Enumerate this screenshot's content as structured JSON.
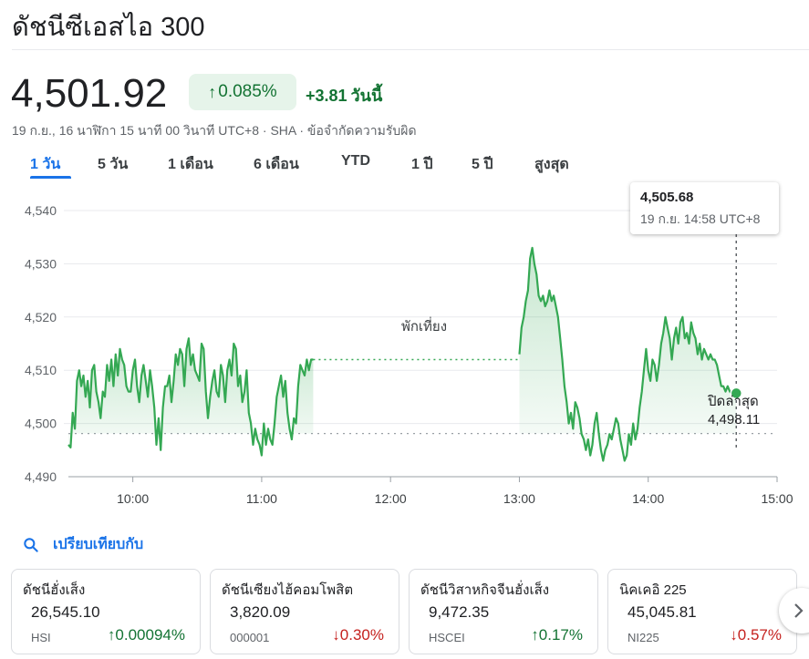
{
  "header": {
    "title": "ดัชนีซีเอสไอ 300",
    "price": "4,501.92",
    "change_pct": "0.085%",
    "change_abs": "+3.81",
    "change_period": "วันนี้",
    "meta": "19 ก.ย., 16 นาฬิกา 15 นาที 00 วินาที UTC+8 · SHA · ข้อจำกัดความรับผิด"
  },
  "tabs": [
    "1 วัน",
    "5 วัน",
    "1 เดือน",
    "6 เดือน",
    "YTD",
    "1 ปี",
    "5 ปี",
    "สูงสุด"
  ],
  "active_tab": 0,
  "colors": {
    "up": "#137333",
    "down": "#c5221f",
    "line": "#34a853",
    "accent": "#1a73e8"
  },
  "chart_data": {
    "type": "line",
    "ylim": [
      4490,
      4540
    ],
    "yticks": [
      "4,540",
      "4,530",
      "4,520",
      "4,510",
      "4,500",
      "4,490"
    ],
    "ytick_values": [
      4540,
      4530,
      4520,
      4510,
      4500,
      4490
    ],
    "xticks": [
      "10:00",
      "11:00",
      "12:00",
      "13:00",
      "14:00",
      "15:00"
    ],
    "xtick_minutes": [
      600,
      660,
      720,
      780,
      840,
      900
    ],
    "xlim_minutes": [
      570,
      900
    ],
    "previous_close": 4498.11,
    "previous_close_label": "ปิดล่าสุด",
    "previous_close_value": "4,498.11",
    "lunch_break_label": "พักเที่ยง",
    "tooltip": {
      "value": "4,505.68",
      "time": "19 ก.ย. 14:58 UTC+8"
    },
    "session1": [
      [
        570,
        4496
      ],
      [
        571,
        4495.5
      ],
      [
        572,
        4502
      ],
      [
        573,
        4499
      ],
      [
        574,
        4508
      ],
      [
        575,
        4510
      ],
      [
        576,
        4507
      ],
      [
        577,
        4509
      ],
      [
        578,
        4505
      ],
      [
        579,
        4508
      ],
      [
        580,
        4503
      ],
      [
        581,
        4510
      ],
      [
        582,
        4511
      ],
      [
        583,
        4506
      ],
      [
        584,
        4504
      ],
      [
        585,
        4501
      ],
      [
        586,
        4506
      ],
      [
        587,
        4505
      ],
      [
        588,
        4511
      ],
      [
        589,
        4508
      ],
      [
        590,
        4512
      ],
      [
        591,
        4507
      ],
      [
        592,
        4513
      ],
      [
        593,
        4509
      ],
      [
        594,
        4514
      ],
      [
        595,
        4512
      ],
      [
        596,
        4511
      ],
      [
        597,
        4507
      ],
      [
        598,
        4506
      ],
      [
        599,
        4506
      ],
      [
        600,
        4510
      ],
      [
        601,
        4512
      ],
      [
        602,
        4507
      ],
      [
        603,
        4504
      ],
      [
        604,
        4509
      ],
      [
        605,
        4511
      ],
      [
        606,
        4508
      ],
      [
        607,
        4505
      ],
      [
        608,
        4510
      ],
      [
        609,
        4507
      ],
      [
        610,
        4503
      ],
      [
        611,
        4496
      ],
      [
        612,
        4501
      ],
      [
        613,
        4495
      ],
      [
        614,
        4503
      ],
      [
        615,
        4507
      ],
      [
        616,
        4507
      ],
      [
        617,
        4509
      ],
      [
        618,
        4504
      ],
      [
        619,
        4508
      ],
      [
        620,
        4513
      ],
      [
        621,
        4511
      ],
      [
        622,
        4514
      ],
      [
        623,
        4513
      ],
      [
        624,
        4507
      ],
      [
        625,
        4514
      ],
      [
        626,
        4516
      ],
      [
        627,
        4511
      ],
      [
        628,
        4513
      ],
      [
        629,
        4510
      ],
      [
        630,
        4509
      ],
      [
        631,
        4508
      ],
      [
        632,
        4515
      ],
      [
        633,
        4514
      ],
      [
        634,
        4506
      ],
      [
        635,
        4501
      ],
      [
        636,
        4505
      ],
      [
        637,
        4508
      ],
      [
        638,
        4510
      ],
      [
        639,
        4506
      ],
      [
        640,
        4505
      ],
      [
        641,
        4511
      ],
      [
        642,
        4509
      ],
      [
        643,
        4504
      ],
      [
        644,
        4510
      ],
      [
        645,
        4512
      ],
      [
        646,
        4509
      ],
      [
        647,
        4515
      ],
      [
        648,
        4514
      ],
      [
        649,
        4507
      ],
      [
        650,
        4509
      ],
      [
        651,
        4504
      ],
      [
        652,
        4506
      ],
      [
        653,
        4510
      ],
      [
        654,
        4502
      ],
      [
        655,
        4500
      ],
      [
        656,
        4496
      ],
      [
        657,
        4499
      ],
      [
        658,
        4497
      ],
      [
        659,
        4496
      ],
      [
        660,
        4494
      ],
      [
        661,
        4500
      ],
      [
        662,
        4496
      ],
      [
        663,
        4499
      ],
      [
        664,
        4497
      ],
      [
        665,
        4496
      ],
      [
        666,
        4500
      ],
      [
        667,
        4505
      ],
      [
        668,
        4507
      ],
      [
        669,
        4509
      ],
      [
        670,
        4505
      ],
      [
        671,
        4508
      ],
      [
        672,
        4502
      ],
      [
        673,
        4499
      ],
      [
        674,
        4497
      ],
      [
        675,
        4501
      ],
      [
        676,
        4500
      ],
      [
        677,
        4507
      ],
      [
        678,
        4511
      ],
      [
        679,
        4510
      ],
      [
        680,
        4509
      ],
      [
        681,
        4512
      ],
      [
        682,
        4510
      ],
      [
        683,
        4512
      ],
      [
        684,
        4512
      ]
    ],
    "session2": [
      [
        780,
        4513
      ],
      [
        781,
        4518
      ],
      [
        782,
        4520
      ],
      [
        783,
        4523
      ],
      [
        784,
        4525
      ],
      [
        785,
        4531
      ],
      [
        786,
        4533
      ],
      [
        787,
        4530
      ],
      [
        788,
        4528
      ],
      [
        789,
        4524
      ],
      [
        790,
        4523
      ],
      [
        791,
        4524
      ],
      [
        792,
        4522
      ],
      [
        793,
        4523
      ],
      [
        794,
        4525
      ],
      [
        795,
        4523
      ],
      [
        796,
        4524
      ],
      [
        797,
        4522
      ],
      [
        798,
        4520
      ],
      [
        799,
        4516
      ],
      [
        800,
        4512
      ],
      [
        801,
        4507
      ],
      [
        802,
        4504
      ],
      [
        803,
        4500
      ],
      [
        804,
        4502
      ],
      [
        805,
        4499
      ],
      [
        806,
        4504
      ],
      [
        807,
        4503
      ],
      [
        808,
        4501
      ],
      [
        809,
        4498
      ],
      [
        810,
        4497
      ],
      [
        811,
        4495
      ],
      [
        812,
        4497
      ],
      [
        813,
        4494
      ],
      [
        814,
        4496
      ],
      [
        815,
        4500
      ],
      [
        816,
        4502
      ],
      [
        817,
        4498
      ],
      [
        818,
        4495
      ],
      [
        819,
        4493
      ],
      [
        820,
        4495
      ],
      [
        821,
        4496
      ],
      [
        822,
        4498
      ],
      [
        823,
        4497
      ],
      [
        824,
        4499
      ],
      [
        825,
        4501
      ],
      [
        826,
        4500
      ],
      [
        827,
        4497
      ],
      [
        828,
        4495
      ],
      [
        829,
        4493
      ],
      [
        830,
        4494
      ],
      [
        831,
        4498
      ],
      [
        832,
        4496
      ],
      [
        833,
        4500
      ],
      [
        834,
        4497
      ],
      [
        835,
        4499
      ],
      [
        836,
        4503
      ],
      [
        837,
        4506
      ],
      [
        838,
        4510
      ],
      [
        839,
        4514
      ],
      [
        840,
        4510
      ],
      [
        841,
        4508
      ],
      [
        842,
        4512
      ],
      [
        843,
        4511
      ],
      [
        844,
        4508
      ],
      [
        845,
        4511
      ],
      [
        846,
        4515
      ],
      [
        847,
        4517
      ],
      [
        848,
        4520
      ],
      [
        849,
        4518
      ],
      [
        850,
        4516
      ],
      [
        851,
        4512
      ],
      [
        852,
        4516
      ],
      [
        853,
        4518
      ],
      [
        854,
        4515
      ],
      [
        855,
        4519
      ],
      [
        856,
        4520
      ],
      [
        857,
        4516
      ],
      [
        858,
        4517
      ],
      [
        859,
        4515
      ],
      [
        860,
        4519
      ],
      [
        861,
        4517
      ],
      [
        862,
        4516
      ],
      [
        863,
        4513
      ],
      [
        864,
        4515
      ],
      [
        865,
        4512
      ],
      [
        866,
        4514
      ],
      [
        867,
        4513
      ],
      [
        868,
        4512
      ],
      [
        869,
        4513
      ],
      [
        870,
        4512
      ],
      [
        871,
        4512
      ],
      [
        872,
        4511
      ],
      [
        873,
        4509
      ],
      [
        874,
        4507
      ],
      [
        875,
        4507
      ],
      [
        876,
        4506
      ],
      [
        877,
        4507
      ],
      [
        878,
        4506
      ],
      [
        879,
        4505.5
      ],
      [
        880,
        4505.6
      ],
      [
        881,
        4505.68
      ]
    ]
  },
  "compare": {
    "label": "เปรียบเทียบกับ"
  },
  "cards": [
    {
      "name": "ดัชนีฮั่งเส็ง",
      "value": "26,545.10",
      "ticker": "HSI",
      "change": "0.00094%",
      "direction": "up"
    },
    {
      "name": "ดัชนีเซียงไฮ้คอมโพสิต",
      "value": "3,820.09",
      "ticker": "000001",
      "change": "0.30%",
      "direction": "down"
    },
    {
      "name": "ดัชนีวิสาหกิจจีนฮั่งเส็ง",
      "value": "9,472.35",
      "ticker": "HSCEI",
      "change": "0.17%",
      "direction": "up"
    },
    {
      "name": "นิคเคอิ 225",
      "value": "45,045.81",
      "ticker": "NI225",
      "change": "0.57%",
      "direction": "down"
    }
  ]
}
